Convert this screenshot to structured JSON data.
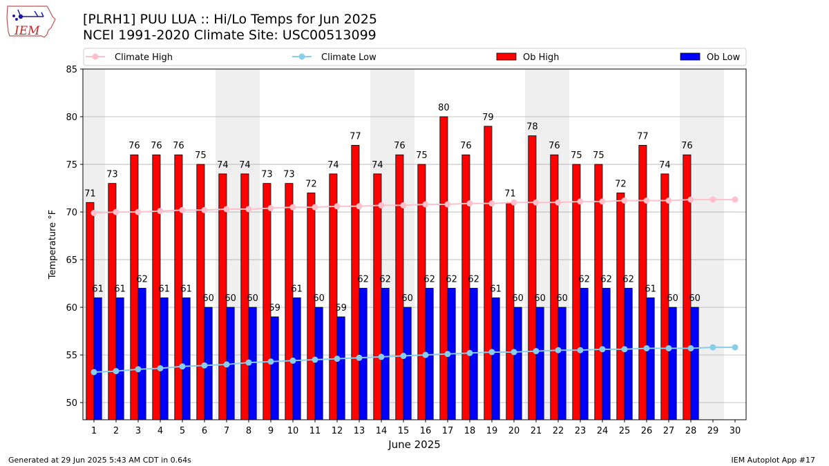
{
  "header": {
    "title_line1": "[PLRH1] PUU LUA :: Hi/Lo Temps for Jun 2025",
    "title_line2": "NCEI 1991-2020 Climate Site: USC00513099"
  },
  "logo": {
    "text": "IEM",
    "icon": "iem-iowa-logo-icon"
  },
  "footer": {
    "generated": "Generated at 29 Jun 2025 5:43 AM CDT in 0.64s",
    "app": "IEM Autoplot App #17"
  },
  "colors": {
    "ob_high": "#ff0000",
    "ob_low": "#0000ff",
    "climate_high": "#ffc0cb",
    "climate_low": "#87ceeb",
    "weekend_shade": "#efefef",
    "grid": "#b0b0b0"
  },
  "chart_data": {
    "type": "bar",
    "title": "[PLRH1] PUU LUA :: Hi/Lo Temps for Jun 2025",
    "subtitle": "NCEI 1991-2020 Climate Site: USC00513099",
    "xlabel": "June 2025",
    "ylabel": "Temperature °F",
    "ylim": [
      48.2,
      85
    ],
    "yticks": [
      50,
      55,
      60,
      65,
      70,
      75,
      80,
      85
    ],
    "grid": "horizontal",
    "legend_placement": "top",
    "x": [
      1,
      2,
      3,
      4,
      5,
      6,
      7,
      8,
      9,
      10,
      11,
      12,
      13,
      14,
      15,
      16,
      17,
      18,
      19,
      20,
      21,
      22,
      23,
      24,
      25,
      26,
      27,
      28,
      29,
      30
    ],
    "shaded_days": [
      [
        1,
        1
      ],
      [
        7,
        8
      ],
      [
        14,
        15
      ],
      [
        21,
        22
      ],
      [
        28,
        29
      ]
    ],
    "series": [
      {
        "name": "Climate High",
        "kind": "line",
        "values": [
          69.9,
          70.0,
          70.0,
          70.1,
          70.2,
          70.2,
          70.3,
          70.3,
          70.4,
          70.5,
          70.5,
          70.6,
          70.6,
          70.7,
          70.7,
          70.8,
          70.8,
          70.9,
          70.9,
          71.0,
          71.0,
          71.0,
          71.1,
          71.1,
          71.2,
          71.2,
          71.2,
          71.3,
          71.3,
          71.3
        ]
      },
      {
        "name": "Climate Low",
        "kind": "line",
        "values": [
          53.2,
          53.3,
          53.5,
          53.6,
          53.8,
          53.9,
          54.0,
          54.2,
          54.3,
          54.4,
          54.5,
          54.6,
          54.7,
          54.8,
          54.9,
          55.0,
          55.1,
          55.2,
          55.3,
          55.3,
          55.4,
          55.5,
          55.5,
          55.6,
          55.6,
          55.7,
          55.7,
          55.7,
          55.8,
          55.8
        ]
      },
      {
        "name": "Ob High",
        "kind": "bar",
        "values": [
          71,
          73,
          76,
          76,
          76,
          75,
          74,
          74,
          73,
          73,
          72,
          74,
          77,
          74,
          76,
          75,
          80,
          76,
          79,
          71,
          78,
          76,
          75,
          75,
          72,
          77,
          74,
          76,
          null,
          null
        ]
      },
      {
        "name": "Ob Low",
        "kind": "bar",
        "values": [
          61,
          61,
          62,
          61,
          61,
          60,
          60,
          60,
          59,
          61,
          60,
          59,
          62,
          62,
          60,
          62,
          62,
          62,
          61,
          60,
          60,
          60,
          62,
          62,
          62,
          61,
          60,
          60,
          null,
          null
        ]
      }
    ]
  }
}
